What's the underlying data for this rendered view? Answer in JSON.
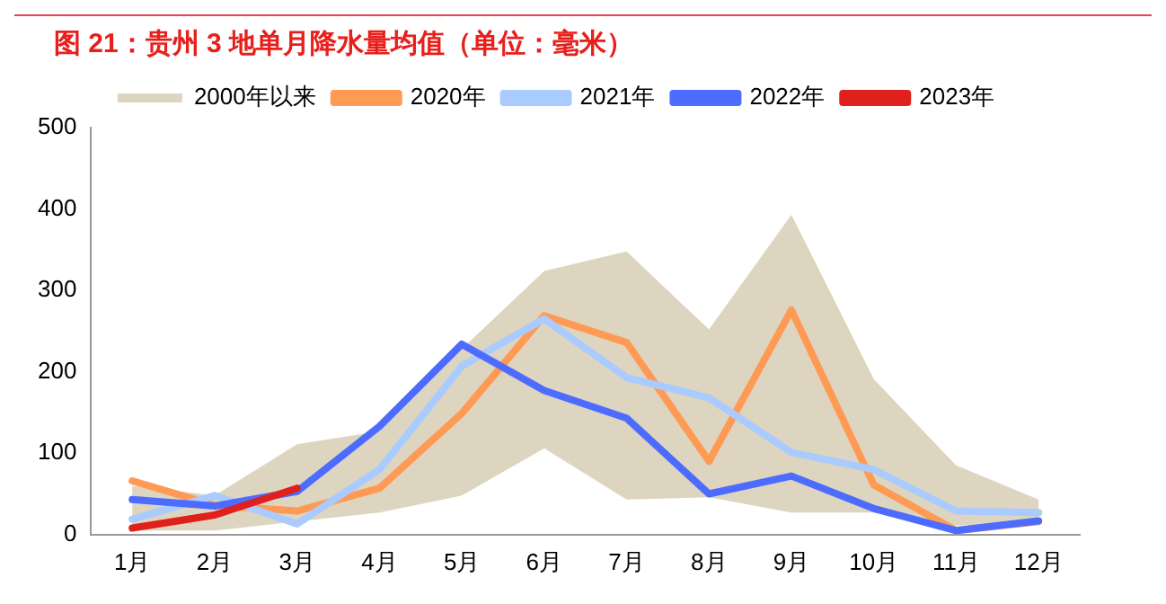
{
  "chart_data": {
    "type": "line",
    "title": "图 21：贵州 3 地单月降水量均值（单位：毫米）",
    "categories": [
      "1月",
      "2月",
      "3月",
      "4月",
      "5月",
      "6月",
      "7月",
      "8月",
      "9月",
      "10月",
      "11月",
      "12月"
    ],
    "series": [
      {
        "name": "2000年以来",
        "type": "area",
        "color": "#ddd5bf",
        "values": [
          null,
          null,
          null,
          null,
          null,
          null,
          null,
          null,
          null,
          null,
          null,
          null
        ],
        "lower": [
          5,
          5,
          16,
          27,
          48,
          106,
          43,
          46,
          27,
          27,
          11,
          15
        ],
        "upper": [
          60,
          48,
          111,
          127,
          228,
          324,
          348,
          252,
          393,
          191,
          85,
          43
        ]
      },
      {
        "name": "2020年",
        "color": "#ff9a55",
        "values": [
          66,
          36,
          29,
          57,
          149,
          269,
          236,
          90,
          276,
          61,
          5,
          16
        ]
      },
      {
        "name": "2021年",
        "color": "#a9cbff",
        "values": [
          19,
          48,
          13,
          80,
          207,
          265,
          193,
          168,
          101,
          80,
          29,
          27
        ]
      },
      {
        "name": "2022年",
        "color": "#4d6cff",
        "values": [
          43,
          35,
          53,
          133,
          234,
          177,
          143,
          50,
          72,
          32,
          5,
          17
        ]
      },
      {
        "name": "2023年",
        "color": "#e0201c",
        "values": [
          8,
          24,
          57,
          null,
          null,
          null,
          null,
          null,
          null,
          null,
          null,
          null
        ]
      }
    ],
    "ylim": [
      0,
      500
    ],
    "yticks": [
      0,
      100,
      200,
      300,
      400,
      500
    ],
    "grid": false,
    "legend": "top",
    "marker": "none",
    "line_style": "solid"
  }
}
